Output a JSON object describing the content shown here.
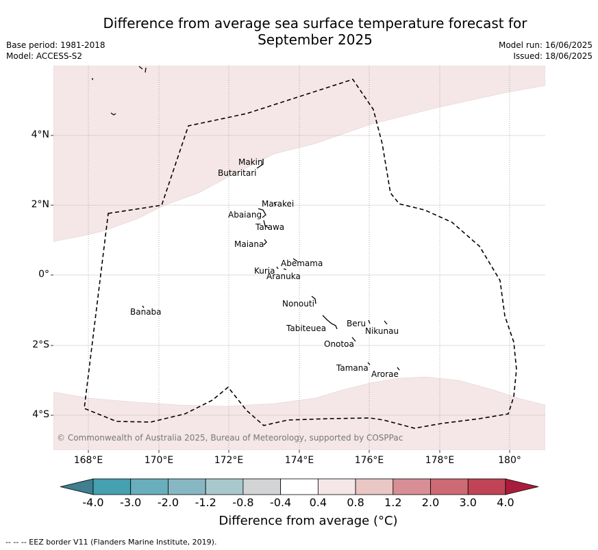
{
  "title_line1": "Difference from average sea surface temperature forecast for",
  "title_line2": "September 2025",
  "base_period": "Base period: 1981-2018",
  "model": "Model: ACCESS-S2",
  "model_run": "Model run: 16/06/2025",
  "issued": "Issued: 18/06/2025",
  "lat_labels": [
    "4°N",
    "2°N",
    "0°",
    "2°S",
    "4°S"
  ],
  "lon_labels": [
    "168°E",
    "170°E",
    "172°E",
    "174°E",
    "176°E",
    "178°E",
    "180°"
  ],
  "islands": [
    "Makin",
    "Butaritari",
    "Marakei",
    "Abaiang",
    "Tarawa",
    "Maiana",
    "Abemama",
    "Kuria",
    "Aranuka",
    "Banaba",
    "Nonouti",
    "Beru",
    "Nikunau",
    "Tabiteuea",
    "Onotoa",
    "Tamana",
    "Arorae"
  ],
  "copyright": "© Commonwealth of Australia 2025, Bureau of Meteorology, supported by COSPPac",
  "colorbar": {
    "ticks": [
      "-4.0",
      "-3.0",
      "-2.0",
      "-1.2",
      "-0.8",
      "-0.4",
      "0.4",
      "0.8",
      "1.2",
      "2.0",
      "3.0",
      "4.0"
    ],
    "colors": [
      "#3f7f8f",
      "#45a0b0",
      "#68aebb",
      "#87b7c2",
      "#a8c8cd",
      "#d3d4d6",
      "#ffffff",
      "#f5e7e7",
      "#e8c7c5",
      "#d88e95",
      "#cd6a73",
      "#c04455",
      "#a91d3c"
    ],
    "title": "Difference from average (°C)"
  },
  "footer": "--  --  -- EEZ border V11 (Flanders Marine Institute, 2019)."
}
